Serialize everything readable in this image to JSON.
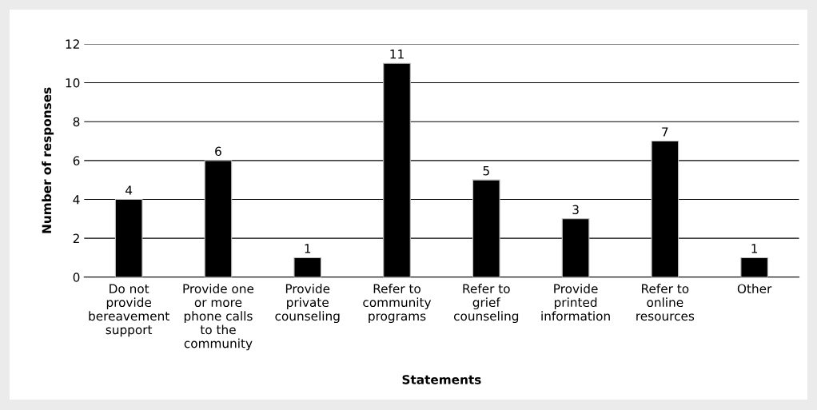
{
  "chart_data": {
    "type": "bar",
    "categories": [
      "Do not\nprovide\nbereavement\nsupport",
      "Provide one\nor more\nphone calls\nto the\ncommunity",
      "Provide\nprivate\ncounseling",
      "Refer to\ncommunity\nprograms",
      "Refer to\ngrief\ncounseling",
      "Provide\nprinted\ninformation",
      "Refer to\nonline\nresources",
      "Other"
    ],
    "values": [
      4,
      6,
      1,
      11,
      5,
      3,
      7,
      1
    ],
    "color": "#000000",
    "xlabel": "Statements",
    "ylabel": "Number of responses",
    "ylim": [
      0,
      12
    ],
    "yticks": [
      0,
      2,
      4,
      6,
      8,
      10,
      12
    ],
    "grid": "y",
    "data_labels": true
  }
}
